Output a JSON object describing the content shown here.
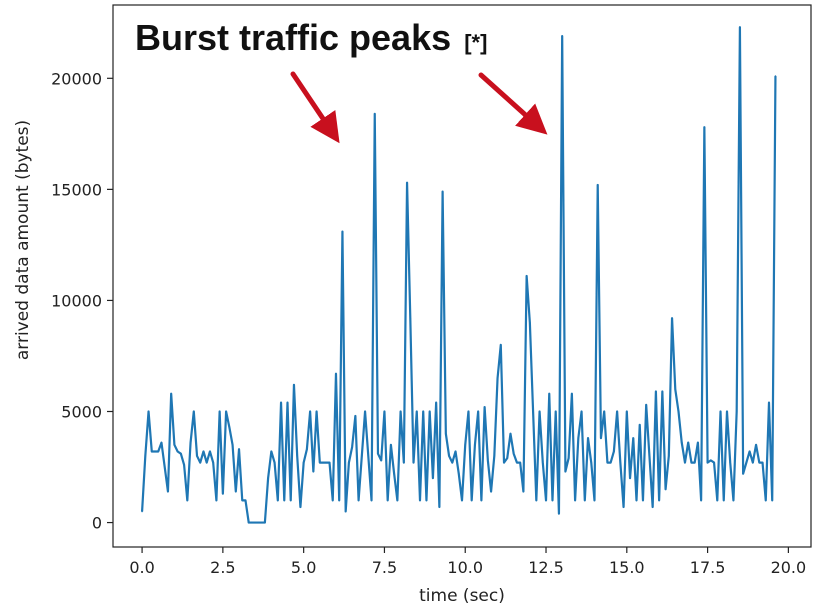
{
  "colors": {
    "series": "#1f77b4",
    "annotation_arrow": "#c8101e",
    "axes": "#222222",
    "background": "#ffffff"
  },
  "chart_data": {
    "type": "line",
    "title": "",
    "xlabel": "time (sec)",
    "ylabel": "arrived data amount (bytes)",
    "xlim": [
      -0.9,
      20.7
    ],
    "ylim": [
      -1100,
      23300
    ],
    "x_ticks": [
      0.0,
      2.5,
      5.0,
      7.5,
      10.0,
      12.5,
      15.0,
      17.5,
      20.0
    ],
    "x_tick_labels": [
      "0.0",
      "2.5",
      "5.0",
      "7.5",
      "10.0",
      "12.5",
      "15.0",
      "17.5",
      "20.0"
    ],
    "y_ticks": [
      0,
      5000,
      10000,
      15000,
      20000
    ],
    "y_tick_labels": [
      "0",
      "5000",
      "10000",
      "15000",
      "20000"
    ],
    "grid": false,
    "legend": "none",
    "annotation": {
      "text": "Burst traffic peaks",
      "note": "[*]",
      "arrow_count": 2
    },
    "series": [
      {
        "x": [
          0.0,
          0.1,
          0.2,
          0.3,
          0.4,
          0.5,
          0.6,
          0.7,
          0.8,
          0.9,
          1.0,
          1.1,
          1.2,
          1.3,
          1.4,
          1.5,
          1.6,
          1.7,
          1.8,
          1.9,
          2.0,
          2.1,
          2.2,
          2.3,
          2.4,
          2.5,
          2.6,
          2.7,
          2.8,
          2.9,
          3.0,
          3.1,
          3.2,
          3.3,
          3.4,
          3.5,
          3.6,
          3.7,
          3.8,
          3.9,
          4.0,
          4.1,
          4.2,
          4.3,
          4.4,
          4.5,
          4.6,
          4.7,
          4.8,
          4.9,
          5.0,
          5.1,
          5.2,
          5.3,
          5.4,
          5.5,
          5.6,
          5.7,
          5.8,
          5.9,
          6.0,
          6.1,
          6.2,
          6.3,
          6.4,
          6.5,
          6.6,
          6.7,
          6.8,
          6.9,
          7.0,
          7.1,
          7.2,
          7.3,
          7.4,
          7.5,
          7.6,
          7.7,
          7.8,
          7.9,
          8.0,
          8.1,
          8.2,
          8.3,
          8.4,
          8.5,
          8.6,
          8.7,
          8.8,
          8.9,
          9.0,
          9.1,
          9.2,
          9.3,
          9.4,
          9.5,
          9.6,
          9.7,
          9.8,
          9.9,
          10.0,
          10.1,
          10.2,
          10.3,
          10.4,
          10.5,
          10.6,
          10.7,
          10.8,
          10.9,
          11.0,
          11.1,
          11.2,
          11.3,
          11.4,
          11.5,
          11.6,
          11.7,
          11.8,
          11.9,
          12.0,
          12.1,
          12.2,
          12.3,
          12.4,
          12.5,
          12.6,
          12.7,
          12.8,
          12.9,
          13.0,
          13.1,
          13.2,
          13.3,
          13.4,
          13.5,
          13.6,
          13.7,
          13.8,
          13.9,
          14.0,
          14.1,
          14.2,
          14.3,
          14.4,
          14.5,
          14.6,
          14.7,
          14.8,
          14.9,
          15.0,
          15.1,
          15.2,
          15.3,
          15.4,
          15.5,
          15.6,
          15.7,
          15.8,
          15.9,
          16.0,
          16.1,
          16.2,
          16.3,
          16.4,
          16.5,
          16.6,
          16.7,
          16.8,
          16.9,
          17.0,
          17.1,
          17.2,
          17.3,
          17.4,
          17.5,
          17.6,
          17.7,
          17.8,
          17.9,
          18.0,
          18.1,
          18.2,
          18.3,
          18.4,
          18.5,
          18.6,
          18.7,
          18.8,
          18.9,
          19.0,
          19.1,
          19.2,
          19.3,
          19.4,
          19.5,
          19.6
        ],
        "values": [
          500,
          3000,
          5000,
          3200,
          3200,
          3200,
          3600,
          2500,
          1400,
          5800,
          3500,
          3200,
          3100,
          2600,
          1000,
          3600,
          5000,
          3000,
          2700,
          3200,
          2700,
          3200,
          2700,
          1000,
          5000,
          1300,
          5000,
          4300,
          3500,
          1400,
          3300,
          1000,
          1000,
          0,
          0,
          0,
          0,
          0,
          0,
          2000,
          3200,
          2700,
          1000,
          5400,
          1000,
          5400,
          1000,
          6200,
          3000,
          700,
          2700,
          3300,
          5000,
          2300,
          5000,
          2700,
          2700,
          2700,
          2700,
          1000,
          6700,
          1000,
          13100,
          500,
          2700,
          3400,
          4800,
          1000,
          3000,
          5000,
          3000,
          1000,
          18400,
          3100,
          2800,
          5000,
          1000,
          3500,
          2200,
          1000,
          5000,
          2700,
          15300,
          9200,
          2700,
          5000,
          1000,
          5000,
          1000,
          5000,
          2000,
          5400,
          700,
          14900,
          4000,
          3000,
          2700,
          3200,
          2200,
          1000,
          3500,
          5000,
          1000,
          3500,
          5000,
          1000,
          5200,
          2800,
          1400,
          3000,
          6500,
          8000,
          2700,
          2900,
          4000,
          3100,
          2700,
          2700,
          1400,
          11100,
          9000,
          5000,
          1000,
          5000,
          2700,
          1000,
          5800,
          1000,
          5000,
          400,
          21900,
          2300,
          2900,
          5800,
          1000,
          3800,
          5000,
          1000,
          3800,
          2700,
          1000,
          15200,
          3800,
          5000,
          2700,
          2700,
          3200,
          5000,
          2700,
          700,
          5000,
          2000,
          3800,
          1000,
          4400,
          1000,
          5300,
          3000,
          700,
          5900,
          1000,
          5900,
          1500,
          3000,
          9200,
          6000,
          5000,
          3600,
          2700,
          3600,
          2700,
          2700,
          3600,
          1000,
          17800,
          2700,
          2800,
          2700,
          1000,
          5000,
          1000,
          5000,
          2700,
          1000,
          5000,
          22300,
          2200,
          2700,
          3200,
          2700,
          3500,
          2700,
          2700,
          1000,
          5400,
          1000,
          20100
        ]
      }
    ]
  }
}
